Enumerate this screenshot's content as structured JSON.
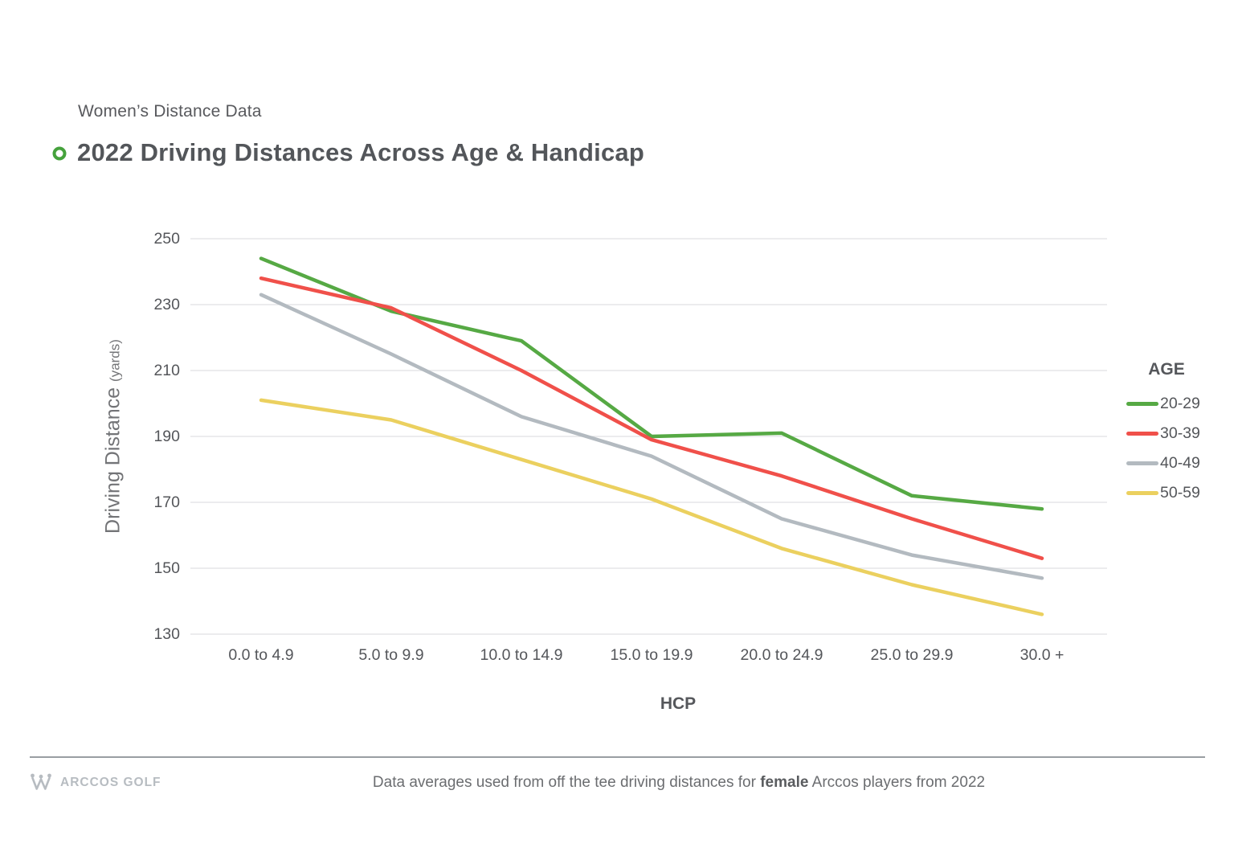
{
  "header": {
    "eyebrow": "Women’s Distance Data",
    "title": "2022 Driving Distances Across Age & Handicap"
  },
  "chart_data": {
    "type": "line",
    "title": "2022 Driving Distances Across Age & Handicap",
    "xlabel": "HCP",
    "ylabel": "Driving Distance",
    "ylabel_unit": "(yards)",
    "categories": [
      "0.0 to 4.9",
      "5.0 to 9.9",
      "10.0 to 14.9",
      "15.0 to 19.9",
      "20.0 to 24.9",
      "25.0 to 29.9",
      "30.0 +"
    ],
    "ylim": [
      130,
      250
    ],
    "yticks": [
      250,
      230,
      210,
      190,
      170,
      150,
      130
    ],
    "grid": true,
    "legend_title": "AGE",
    "legend_position": "right",
    "series": [
      {
        "name": "20-29",
        "color": "#56A944",
        "values": [
          244,
          228,
          219,
          190,
          191,
          172,
          168
        ]
      },
      {
        "name": "30-39",
        "color": "#F0504A",
        "values": [
          238,
          229,
          210,
          189,
          178,
          165,
          153
        ]
      },
      {
        "name": "40-49",
        "color": "#B3BAC0",
        "values": [
          233,
          215,
          196,
          184,
          165,
          154,
          147
        ]
      },
      {
        "name": "50-59",
        "color": "#EBD05F",
        "values": [
          201,
          195,
          183,
          171,
          156,
          145,
          136
        ]
      }
    ]
  },
  "colors": {
    "accent_green": "#45A23C",
    "gridline": "#E0E1E3",
    "text_dark": "#54565A",
    "text_muted": "#6B6D70",
    "brand_gray": "#B7BCC1"
  },
  "footer": {
    "brand": "ARCCOS GOLF",
    "caption_prefix": "Data averages used from off the tee driving distances for ",
    "caption_bold": "female",
    "caption_suffix": " Arccos players from 2022"
  }
}
